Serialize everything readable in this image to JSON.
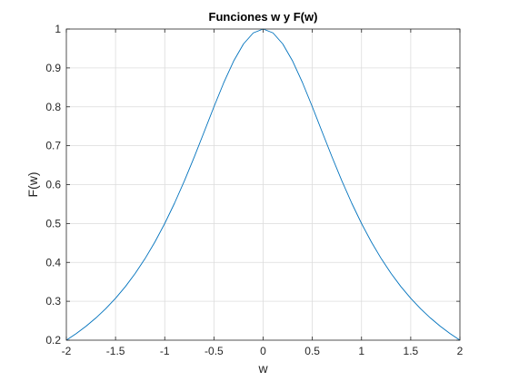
{
  "chart_data": {
    "type": "line",
    "title": "Funciones w y F(w)",
    "xlabel": "w",
    "ylabel": "F(w)",
    "xlim": [
      -2,
      2
    ],
    "ylim": [
      0.2,
      1
    ],
    "xticks": [
      -2,
      -1.5,
      -1,
      -0.5,
      0,
      0.5,
      1,
      1.5,
      2
    ],
    "xtick_labels": [
      "-2",
      "-1.5",
      "-1",
      "-0.5",
      "0",
      "0.5",
      "1",
      "1.5",
      "2"
    ],
    "yticks": [
      0.2,
      0.3,
      0.4,
      0.5,
      0.6,
      0.7,
      0.8,
      0.9,
      1
    ],
    "ytick_labels": [
      "0.2",
      "0.3",
      "0.4",
      "0.5",
      "0.6",
      "0.7",
      "0.8",
      "0.9",
      "1"
    ],
    "grid": true,
    "series": [
      {
        "color": "#0072bd",
        "x": [
          -2,
          -1.9,
          -1.8,
          -1.7,
          -1.6,
          -1.5,
          -1.4,
          -1.3,
          -1.2,
          -1.1,
          -1,
          -0.9,
          -0.8,
          -0.7,
          -0.6,
          -0.5,
          -0.4,
          -0.3,
          -0.2,
          -0.1,
          0,
          0.1,
          0.2,
          0.3,
          0.4,
          0.5,
          0.6,
          0.7,
          0.8,
          0.9,
          1,
          1.1,
          1.2,
          1.3,
          1.4,
          1.5,
          1.6,
          1.7,
          1.8,
          1.9,
          2
        ],
        "y": [
          0.2,
          0.2169,
          0.2358,
          0.2571,
          0.2809,
          0.3077,
          0.3378,
          0.3717,
          0.4098,
          0.4525,
          0.5,
          0.5525,
          0.6098,
          0.6711,
          0.7353,
          0.8,
          0.8621,
          0.9174,
          0.9615,
          0.9901,
          1,
          0.9901,
          0.9615,
          0.9174,
          0.8621,
          0.8,
          0.7353,
          0.6711,
          0.6098,
          0.5525,
          0.5,
          0.4525,
          0.4098,
          0.3717,
          0.3378,
          0.3077,
          0.2809,
          0.2571,
          0.2358,
          0.2169,
          0.2
        ]
      }
    ]
  }
}
